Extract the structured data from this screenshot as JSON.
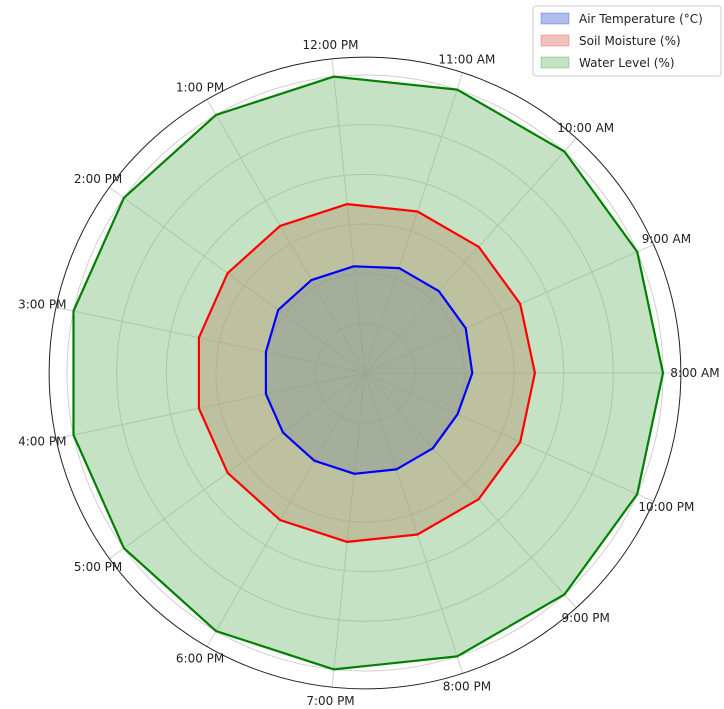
{
  "chart_data": {
    "type": "radar",
    "categories": [
      "8:00 AM",
      "9:00 AM",
      "10:00 AM",
      "11:00 AM",
      "12:00 PM",
      "1:00 PM",
      "2:00 PM",
      "3:00 PM",
      "4:00 PM",
      "5:00 PM",
      "6:00 PM",
      "7:00 PM",
      "8:00 PM",
      "9:00 PM",
      "10:00 PM"
    ],
    "series": [
      {
        "name": "Air Temperature (°C)",
        "color": "#0000ff",
        "fill": "#4a6fd6",
        "values": [
          36,
          37,
          37,
          37,
          36,
          36,
          36,
          34,
          34,
          34,
          34,
          34,
          34,
          34,
          34
        ]
      },
      {
        "name": "Soil Moisture (%)",
        "color": "#ff0000",
        "fill": "#e27a6a",
        "values": [
          57,
          57,
          57,
          57,
          57,
          57,
          57,
          57,
          57,
          57,
          57,
          57,
          57,
          57,
          57
        ]
      },
      {
        "name": "Water Level (%)",
        "color": "#008000",
        "fill": "#7fbf7f",
        "values": [
          100,
          100,
          100,
          100,
          100,
          100,
          100,
          100,
          100,
          100,
          100,
          100,
          100,
          100,
          100
        ]
      }
    ],
    "rmax": 100,
    "rings": 6,
    "grid": true,
    "legend_position": "top-right"
  }
}
